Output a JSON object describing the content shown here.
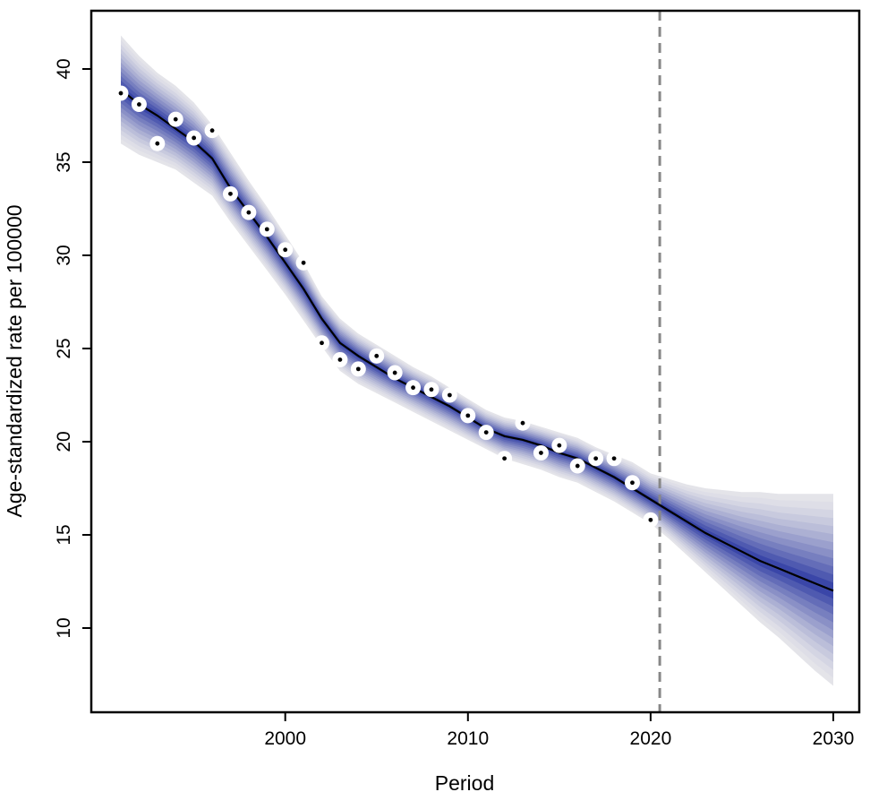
{
  "chart_data": {
    "type": "line",
    "title": "",
    "xlabel": "Period",
    "ylabel": "Age-standardized rate per 100000",
    "xlim": [
      1991,
      2030
    ],
    "ylim": [
      7,
      43
    ],
    "x_ticks": [
      2000,
      2010,
      2020,
      2030
    ],
    "y_ticks": [
      10,
      15,
      20,
      25,
      30,
      35,
      40
    ],
    "grid": false,
    "legend": "none",
    "vertical_reference_line": {
      "x": 2020.5,
      "style": "dashed",
      "color": "#888888"
    },
    "colors": {
      "band_outer": "#e6e6ea",
      "band_inner": "#3a46a8",
      "line": "#000000",
      "observed_marker": "#ffffff"
    },
    "series": [
      {
        "kind": "observed",
        "x": [
          1991,
          1992,
          1993,
          1994,
          1995,
          1996,
          1997,
          1998,
          1999,
          2000,
          2001,
          2002,
          2003,
          2004,
          2005,
          2006,
          2007,
          2008,
          2009,
          2010,
          2011,
          2012,
          2013,
          2014,
          2015,
          2016,
          2017,
          2018,
          2019,
          2020
        ],
        "values": [
          38.7,
          38.1,
          36.0,
          37.3,
          36.3,
          36.7,
          33.3,
          32.3,
          31.4,
          30.3,
          29.6,
          25.3,
          24.4,
          23.9,
          24.6,
          23.7,
          22.9,
          22.8,
          22.5,
          21.4,
          20.5,
          19.1,
          21.0,
          19.4,
          19.8,
          18.7,
          19.1,
          19.1,
          17.8,
          15.8
        ]
      },
      {
        "kind": "fitted",
        "x": [
          1991,
          1992,
          1993,
          1994,
          1995,
          1996,
          1997,
          1998,
          1999,
          2000,
          2001,
          2002,
          2003,
          2004,
          2005,
          2006,
          2007,
          2008,
          2009,
          2010,
          2011,
          2012,
          2013,
          2014,
          2015,
          2016,
          2017,
          2018,
          2019,
          2020,
          2021,
          2022,
          2023,
          2024,
          2025,
          2026,
          2027,
          2028,
          2029,
          2030
        ],
        "values": [
          38.9,
          38.1,
          37.5,
          36.8,
          36.1,
          35.2,
          33.6,
          32.3,
          31.0,
          29.6,
          28.2,
          26.6,
          25.3,
          24.6,
          24.0,
          23.4,
          22.9,
          22.4,
          21.9,
          21.3,
          20.7,
          20.3,
          20.1,
          19.8,
          19.4,
          19.1,
          18.6,
          18.1,
          17.5,
          16.9,
          16.3,
          15.7,
          15.1,
          14.6,
          14.1,
          13.6,
          13.2,
          12.8,
          12.4,
          12.0
        ],
        "upper": [
          41.8,
          40.7,
          39.8,
          39.1,
          38.2,
          37.0,
          35.5,
          34.0,
          32.6,
          31.1,
          29.6,
          27.8,
          26.6,
          25.8,
          25.2,
          24.6,
          24.0,
          23.5,
          22.9,
          22.3,
          21.7,
          21.3,
          21.1,
          20.8,
          20.5,
          20.2,
          19.7,
          19.3,
          18.9,
          18.3,
          18.0,
          17.7,
          17.5,
          17.4,
          17.3,
          17.3,
          17.2,
          17.2,
          17.2,
          17.2
        ],
        "lower": [
          36.0,
          35.4,
          35.0,
          34.6,
          33.9,
          33.2,
          31.8,
          30.5,
          29.2,
          27.9,
          26.5,
          25.1,
          23.8,
          23.1,
          22.6,
          22.1,
          21.6,
          21.1,
          20.6,
          20.1,
          19.6,
          19.1,
          18.8,
          18.5,
          18.1,
          17.8,
          17.3,
          16.8,
          16.2,
          15.6,
          14.8,
          13.9,
          13.0,
          12.1,
          11.2,
          10.3,
          9.5,
          8.6,
          7.7,
          6.9
        ]
      }
    ]
  }
}
